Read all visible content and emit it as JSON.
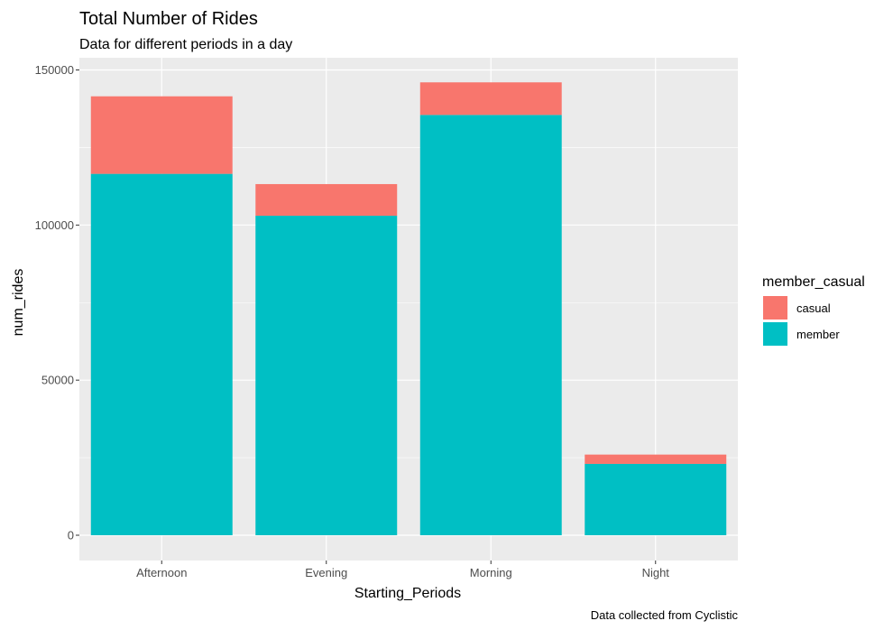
{
  "chart_data": {
    "type": "bar",
    "stacked": true,
    "title": "Total Number of Rides",
    "subtitle": "Data for different periods in a day",
    "caption": "Data collected from Cyclistic",
    "xlabel": "Starting_Periods",
    "ylabel": "num_rides",
    "categories": [
      "Afternoon",
      "Evening",
      "Morning",
      "Night"
    ],
    "series": [
      {
        "name": "member",
        "color": "#00BFC4",
        "values": [
          116500,
          103000,
          135500,
          23000
        ]
      },
      {
        "name": "casual",
        "color": "#F8766D",
        "values": [
          25000,
          10200,
          10500,
          3000
        ]
      }
    ],
    "ylim": [
      -8000,
      155000
    ],
    "yticks": [
      0,
      50000,
      100000,
      150000
    ],
    "ytick_labels": [
      "0",
      "50000",
      "100000",
      "150000"
    ],
    "grid": true,
    "panel_background": "#EBEBEB",
    "legend": {
      "title": "member_casual",
      "position": "right",
      "entries": [
        {
          "label": "casual",
          "color": "#F8766D"
        },
        {
          "label": "member",
          "color": "#00BFC4"
        }
      ]
    }
  }
}
